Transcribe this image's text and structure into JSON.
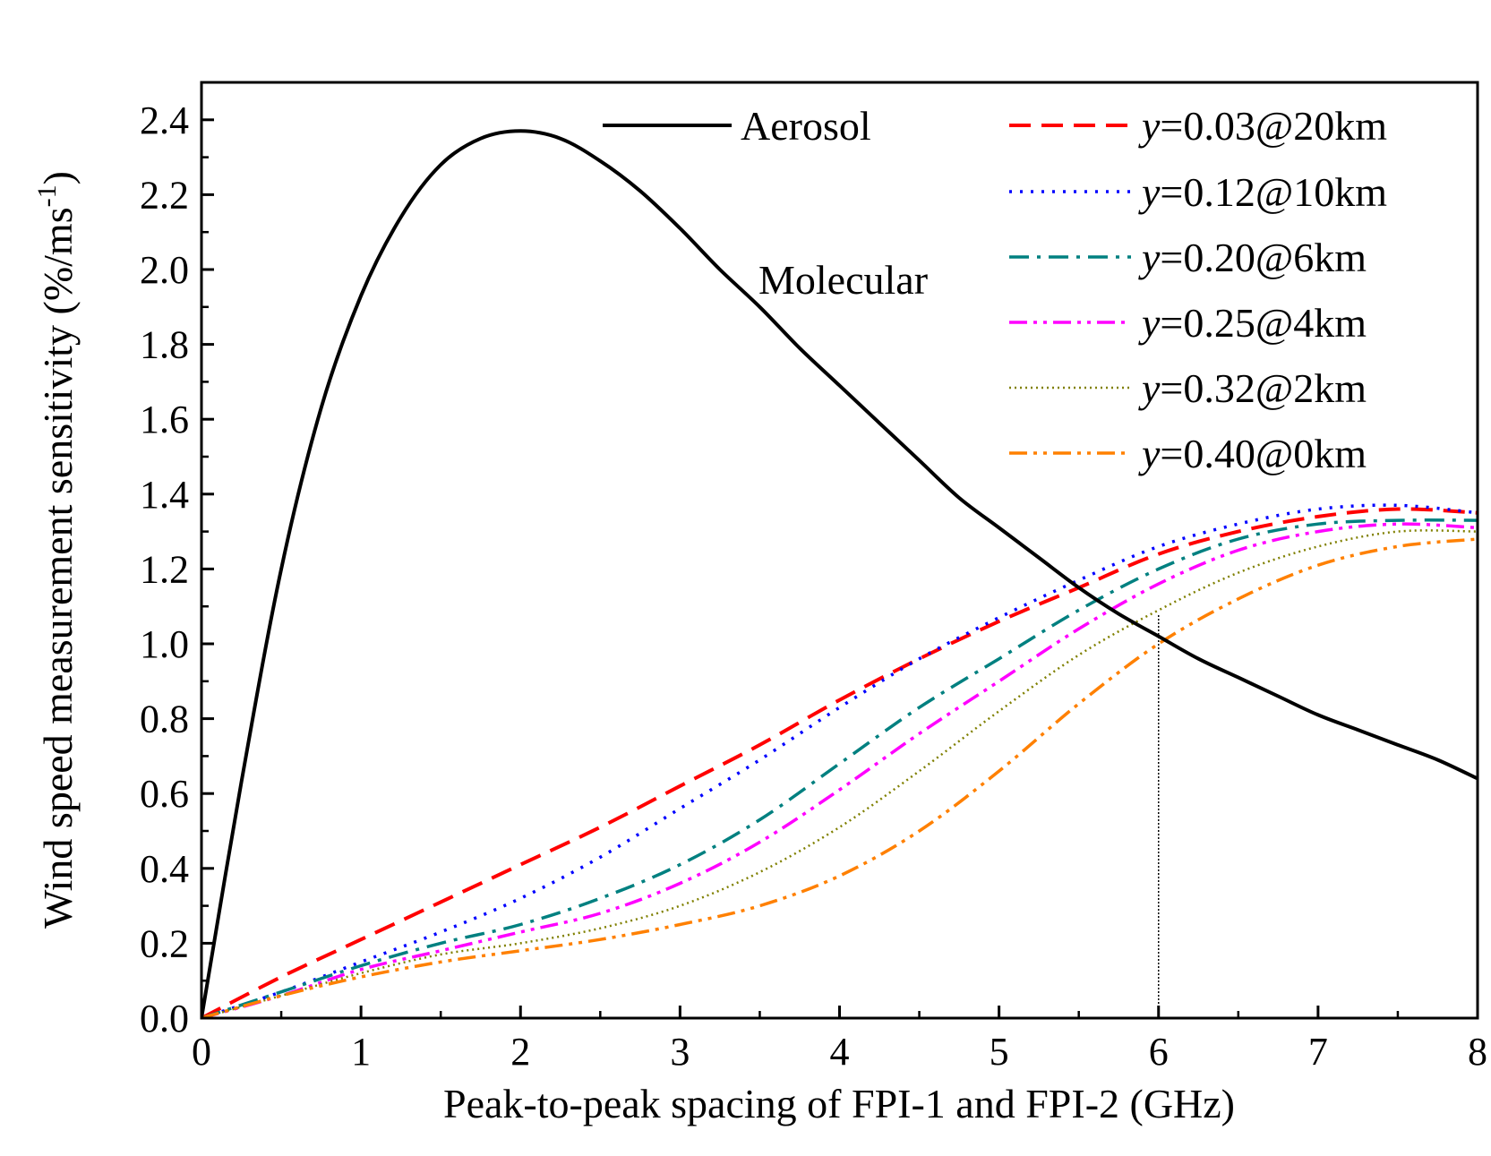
{
  "chart_data": {
    "type": "line",
    "xlabel": "Peak-to-peak spacing of FPI-1 and FPI-2 (GHz)",
    "ylabel": "Wind speed measurement sensitivity (%/ms",
    "ylabel_sup": "-1",
    "ylabel_close": ")",
    "xlim": [
      0,
      8
    ],
    "ylim": [
      0,
      2.5
    ],
    "xticks": [
      0,
      1,
      2,
      3,
      4,
      5,
      6,
      7,
      8
    ],
    "xtick_labels": [
      "0",
      "1",
      "2",
      "3",
      "4",
      "5",
      "6",
      "7",
      "8"
    ],
    "yticks": [
      0,
      0.2,
      0.4,
      0.6,
      0.8,
      1.0,
      1.2,
      1.4,
      1.6,
      1.8,
      2.0,
      2.2,
      2.4
    ],
    "ytick_labels": [
      "0.0",
      "0.2",
      "0.4",
      "0.6",
      "0.8",
      "1.0",
      "1.2",
      "1.4",
      "1.6",
      "1.8",
      "2.0",
      "2.2",
      "2.4"
    ],
    "annotations": {
      "aerosol_legend": "Aerosol",
      "molecular_label": "Molecular",
      "guide_x": 6,
      "guide_y": 1.08
    },
    "series": [
      {
        "name": "Aerosol",
        "legend_var": "",
        "legend_rest": "Aerosol",
        "color": "#000000",
        "dash": "solid",
        "x": [
          0,
          0.25,
          0.5,
          0.75,
          1.0,
          1.25,
          1.5,
          1.75,
          2.0,
          2.25,
          2.5,
          2.75,
          3.0,
          3.25,
          3.5,
          3.75,
          4.0,
          4.25,
          4.5,
          4.75,
          5.0,
          5.25,
          5.5,
          5.75,
          6.0,
          6.25,
          6.5,
          6.75,
          7.0,
          7.25,
          7.5,
          7.75,
          8.0
        ],
        "y": [
          0,
          0.63,
          1.2,
          1.63,
          1.93,
          2.14,
          2.28,
          2.35,
          2.37,
          2.35,
          2.29,
          2.21,
          2.11,
          2.0,
          1.9,
          1.79,
          1.69,
          1.59,
          1.49,
          1.39,
          1.31,
          1.23,
          1.15,
          1.08,
          1.02,
          0.96,
          0.91,
          0.86,
          0.81,
          0.77,
          0.73,
          0.69,
          0.64
        ]
      },
      {
        "name": "y=0.03@20km",
        "legend_var": "y",
        "legend_rest": "=0.03@20km",
        "color": "#ff0000",
        "dash": "dash",
        "x": [
          0,
          0.5,
          1.0,
          1.5,
          2.0,
          2.5,
          3.0,
          3.5,
          4.0,
          4.5,
          5.0,
          5.5,
          6.0,
          6.5,
          7.0,
          7.5,
          8.0
        ],
        "y": [
          0,
          0.11,
          0.21,
          0.31,
          0.41,
          0.51,
          0.62,
          0.73,
          0.85,
          0.96,
          1.06,
          1.15,
          1.24,
          1.3,
          1.34,
          1.36,
          1.35
        ]
      },
      {
        "name": "y=0.12@10km",
        "legend_var": "y",
        "legend_rest": "=0.12@10km",
        "color": "#0000ff",
        "dash": "dot",
        "x": [
          0,
          0.5,
          1.0,
          1.5,
          2.0,
          2.5,
          3.0,
          3.5,
          4.0,
          4.5,
          5.0,
          5.5,
          6.0,
          6.5,
          7.0,
          7.5,
          8.0
        ],
        "y": [
          0,
          0.07,
          0.15,
          0.23,
          0.32,
          0.43,
          0.56,
          0.69,
          0.83,
          0.96,
          1.07,
          1.17,
          1.26,
          1.32,
          1.36,
          1.37,
          1.35
        ]
      },
      {
        "name": "y=0.20@6km",
        "legend_var": "y",
        "legend_rest": "=0.20@6km",
        "color": "#008080",
        "dash": "dashdot",
        "x": [
          0,
          0.5,
          1.0,
          1.5,
          2.0,
          2.5,
          3.0,
          3.5,
          4.0,
          4.5,
          5.0,
          5.5,
          6.0,
          6.5,
          7.0,
          7.5,
          8.0
        ],
        "y": [
          0,
          0.07,
          0.14,
          0.2,
          0.25,
          0.32,
          0.41,
          0.53,
          0.68,
          0.83,
          0.96,
          1.09,
          1.2,
          1.28,
          1.32,
          1.33,
          1.33
        ]
      },
      {
        "name": "y=0.25@4km",
        "legend_var": "y",
        "legend_rest": "=0.25@4km",
        "color": "#ff00ff",
        "dash": "dashdotdot",
        "x": [
          0,
          0.5,
          1.0,
          1.5,
          2.0,
          2.5,
          3.0,
          3.5,
          4.0,
          4.5,
          5.0,
          5.5,
          6.0,
          6.5,
          7.0,
          7.5,
          8.0
        ],
        "y": [
          0,
          0.06,
          0.13,
          0.18,
          0.23,
          0.28,
          0.36,
          0.47,
          0.61,
          0.76,
          0.9,
          1.04,
          1.16,
          1.25,
          1.3,
          1.32,
          1.31
        ]
      },
      {
        "name": "y=0.32@2km",
        "legend_var": "y",
        "legend_rest": "=0.32@2km",
        "color": "#808000",
        "dash": "shortdot",
        "x": [
          0,
          0.5,
          1.0,
          1.5,
          2.0,
          2.5,
          3.0,
          3.5,
          4.0,
          4.5,
          5.0,
          5.5,
          6.0,
          6.5,
          7.0,
          7.5,
          8.0
        ],
        "y": [
          0,
          0.06,
          0.12,
          0.17,
          0.2,
          0.24,
          0.3,
          0.39,
          0.51,
          0.66,
          0.82,
          0.97,
          1.09,
          1.19,
          1.26,
          1.3,
          1.3
        ]
      },
      {
        "name": "y=0.40@0km",
        "legend_var": "y",
        "legend_rest": "=0.40@0km",
        "color": "#ff8000",
        "dash": "dashdotdot",
        "x": [
          0,
          0.5,
          1.0,
          1.5,
          2.0,
          2.5,
          3.0,
          3.5,
          4.0,
          4.5,
          5.0,
          5.5,
          6.0,
          6.5,
          7.0,
          7.5,
          8.0
        ],
        "y": [
          0,
          0.06,
          0.11,
          0.15,
          0.18,
          0.21,
          0.25,
          0.3,
          0.38,
          0.5,
          0.66,
          0.84,
          1.0,
          1.12,
          1.21,
          1.26,
          1.28
        ]
      }
    ]
  }
}
